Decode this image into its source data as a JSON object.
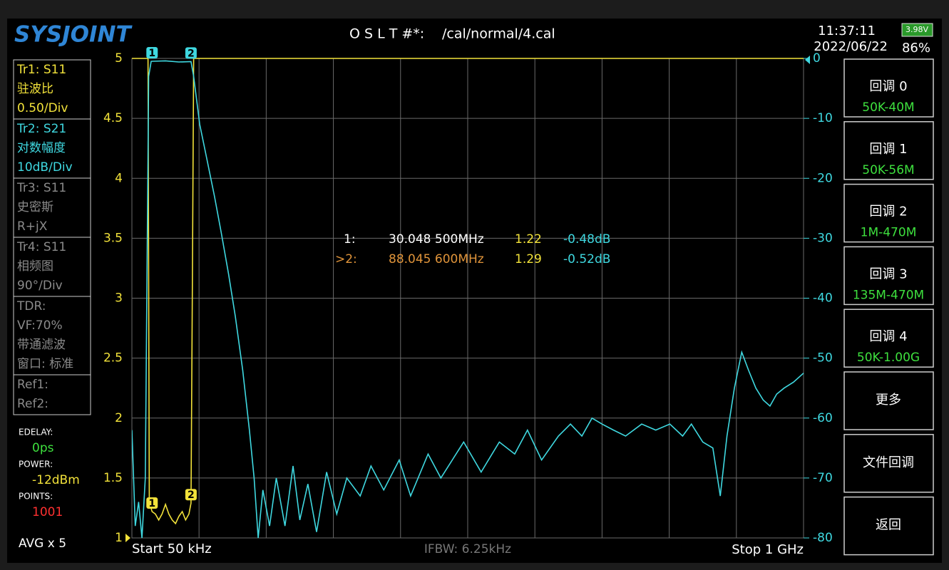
{
  "header": {
    "logo": "SYSJOINT",
    "cal_label": "O S L T #*:",
    "cal_file": "/cal/normal/4.cal",
    "time": "11:37:11",
    "date": "2022/06/22",
    "battery_voltage": "3.98V",
    "battery_percent": "86%"
  },
  "traces": [
    {
      "color": "#f2e23a",
      "lines": [
        "Tr1:  S11",
        "驻波比",
        "0.50/Div"
      ]
    },
    {
      "color": "#3fd8e0",
      "lines": [
        "Tr2:  S21",
        "对数幅度",
        "10dB/Div"
      ]
    },
    {
      "color": "#8a8a8a",
      "lines": [
        "Tr3:  S11",
        "史密斯",
        "R+jX"
      ]
    },
    {
      "color": "#8a8a8a",
      "lines": [
        "Tr4:  S11",
        "相频图",
        "90°/Div"
      ]
    },
    {
      "color": "#8a8a8a",
      "lines": [
        "TDR:",
        "VF:70%",
        "带通滤波",
        "窗口: 标准"
      ]
    },
    {
      "color": "#8a8a8a",
      "lines": [
        "Ref1:",
        "Ref2:"
      ]
    }
  ],
  "status": [
    {
      "label": "EDELAY:",
      "value": "0ps",
      "color": "#3ee03e"
    },
    {
      "label": "POWER:",
      "value": "-12dBm",
      "color": "#f2e23a"
    },
    {
      "label": "POINTS:",
      "value": "1001",
      "color": "#ff3030"
    }
  ],
  "avg": "AVG x 5",
  "menu": [
    {
      "title": "回调 0",
      "sub": "50K-40M"
    },
    {
      "title": "回调 1",
      "sub": "50K-56M"
    },
    {
      "title": "回调 2",
      "sub": "1M-470M"
    },
    {
      "title": "回调 3",
      "sub": "135M-470M"
    },
    {
      "title": "回调 4",
      "sub": "50K-1.00G"
    },
    {
      "title": "更多"
    },
    {
      "title": "文件回调"
    },
    {
      "title": "返回"
    }
  ],
  "chart_data": {
    "type": "line",
    "x_start_label": "Start  50 kHz",
    "x_stop_label": "Stop  1 GHz",
    "ifbw": "IFBW: 6.25kHz",
    "xlim": [
      0.05,
      1000
    ],
    "xticks": [
      100,
      200,
      300,
      400,
      500,
      600,
      700,
      800,
      900
    ],
    "ylim": [
      1,
      5
    ],
    "yticks": [
      1,
      1.5,
      2,
      2.5,
      3,
      3.5,
      4,
      4.5,
      5
    ],
    "y2lim": [
      -80,
      0
    ],
    "y2ticks": [
      -80,
      -70,
      -60,
      -50,
      -40,
      -30,
      -20,
      -10,
      0
    ],
    "grid": true,
    "series": [
      {
        "color": "#f2e23a",
        "x": [
          0.05,
          24,
          26,
          30.0485,
          35,
          40,
          45,
          50,
          55,
          60,
          65,
          70,
          75,
          80,
          85,
          88.0456,
          90,
          92,
          1000
        ],
        "values": [
          5,
          5,
          1.3,
          1.22,
          1.2,
          1.15,
          1.2,
          1.28,
          1.2,
          1.15,
          1.12,
          1.18,
          1.22,
          1.15,
          1.2,
          1.29,
          3,
          5,
          5
        ]
      },
      {
        "color": "#3fd8e0",
        "axis": "y2",
        "x": [
          0.05,
          5,
          10,
          15,
          20,
          23,
          25,
          28.7,
          30.0485,
          50,
          70,
          88.0456,
          92,
          101,
          112,
          123,
          133,
          144,
          154,
          165,
          175,
          182,
          188,
          195,
          205,
          215,
          228,
          240,
          250,
          262,
          275,
          290,
          305,
          320,
          340,
          356,
          375,
          398,
          415,
          441,
          460,
          494,
          520,
          547,
          570,
          589,
          610,
          635,
          653,
          670,
          685,
          700,
          717,
          735,
          759,
          780,
          801,
          820,
          833,
          850,
          865,
          876,
          886,
          897,
          908,
          918,
          929,
          940,
          950,
          960,
          971,
          985,
          1000
        ],
        "values": [
          -62,
          -78,
          -74,
          -80,
          -70,
          -30,
          -3,
          -0.5,
          -0.48,
          -0.4,
          -0.6,
          -0.52,
          -3,
          -11,
          -17,
          -23,
          -29,
          -36,
          -43,
          -52,
          -62,
          -70,
          -80,
          -72,
          -78,
          -70,
          -78,
          -68,
          -77,
          -71,
          -79,
          -69,
          -76,
          -70,
          -73,
          -68,
          -72,
          -67,
          -73,
          -66,
          -70,
          -64,
          -69,
          -64,
          -66,
          -62,
          -67,
          -63,
          -61,
          -63,
          -60,
          -61,
          -62,
          -63,
          -61,
          -62,
          -61,
          -63,
          -61,
          -64,
          -65,
          -73,
          -63,
          -55,
          -49,
          -52,
          -55,
          -57,
          -58,
          -56,
          -55,
          -54,
          -52.5
        ]
      }
    ],
    "markers": [
      {
        "label": "1",
        "x": 30.0485,
        "prefix": "1:",
        "freq": "30.048 500MHz",
        "swr": 1.22,
        "s21": {
          "value": -0.48,
          "label": "-0.48dB"
        },
        "color": "#ffffff"
      },
      {
        "label": "2",
        "x": 88.0456,
        "prefix": ">2:",
        "freq": "88.045 600MHz",
        "swr": 1.29,
        "s21": {
          "value": -0.52,
          "label": "-0.52dB"
        },
        "color": "#e0943a"
      }
    ]
  }
}
